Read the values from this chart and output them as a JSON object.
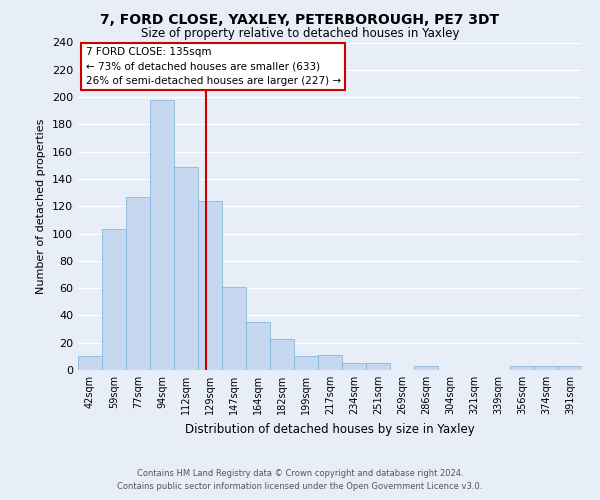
{
  "title": "7, FORD CLOSE, YAXLEY, PETERBOROUGH, PE7 3DT",
  "subtitle": "Size of property relative to detached houses in Yaxley",
  "xlabel": "Distribution of detached houses by size in Yaxley",
  "ylabel": "Number of detached properties",
  "bin_labels": [
    "42sqm",
    "59sqm",
    "77sqm",
    "94sqm",
    "112sqm",
    "129sqm",
    "147sqm",
    "164sqm",
    "182sqm",
    "199sqm",
    "217sqm",
    "234sqm",
    "251sqm",
    "269sqm",
    "286sqm",
    "304sqm",
    "321sqm",
    "339sqm",
    "356sqm",
    "374sqm",
    "391sqm"
  ],
  "bar_heights": [
    10,
    103,
    127,
    198,
    149,
    124,
    61,
    35,
    23,
    10,
    11,
    5,
    5,
    0,
    3,
    0,
    0,
    0,
    3,
    3,
    3
  ],
  "bar_color": "#c5d8f0",
  "bar_edge_color": "#7aaed6",
  "vline_color": "#cc0000",
  "ylim": [
    0,
    240
  ],
  "yticks": [
    0,
    20,
    40,
    60,
    80,
    100,
    120,
    140,
    160,
    180,
    200,
    220,
    240
  ],
  "annotation_title": "7 FORD CLOSE: 135sqm",
  "annotation_line1": "← 73% of detached houses are smaller (633)",
  "annotation_line2": "26% of semi-detached houses are larger (227) →",
  "annotation_box_color": "#ffffff",
  "annotation_box_edge": "#cc0000",
  "footer_line1": "Contains HM Land Registry data © Crown copyright and database right 2024.",
  "footer_line2": "Contains public sector information licensed under the Open Government Licence v3.0.",
  "bg_color": "#e8eef7",
  "plot_bg_color": "#e8eef7",
  "grid_color": "#ffffff"
}
